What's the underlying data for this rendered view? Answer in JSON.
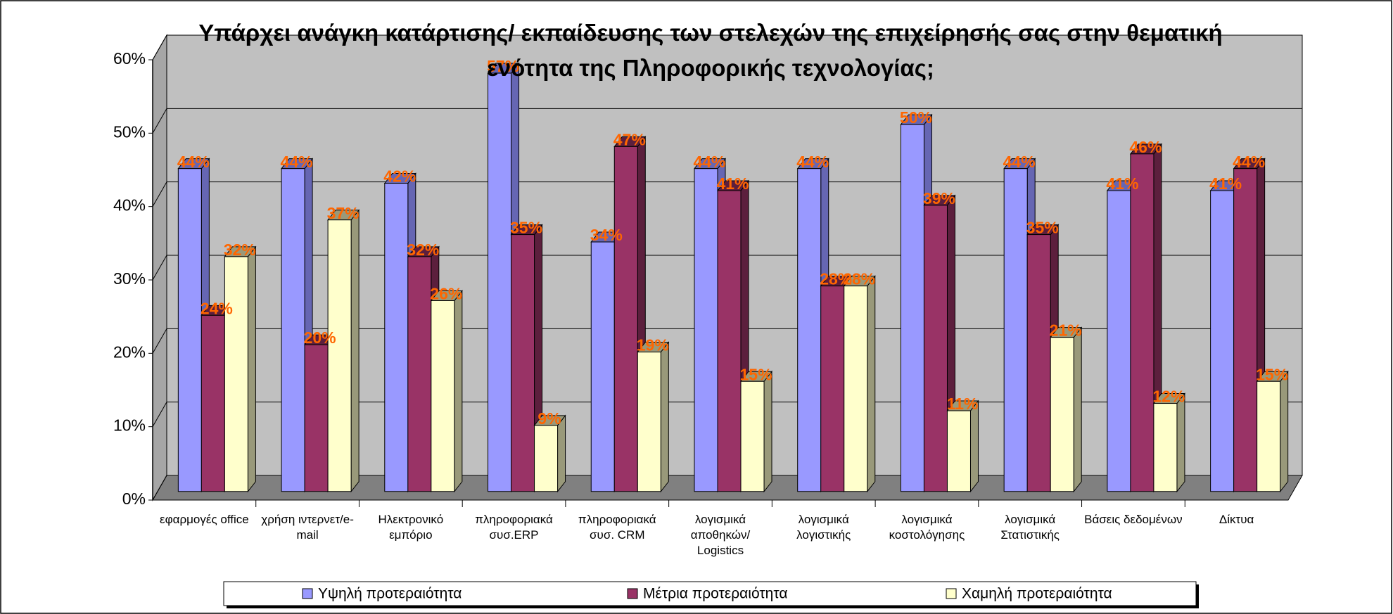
{
  "chart_data": {
    "type": "bar3d",
    "title": "Υπάρχει ανάγκη κατάρτισης/ εκπαίδευσης των στελεχών της επιχείρησής σας στην θεματική ενότητα της Πληροφορικής τεχνολογίας;",
    "categories": [
      "εφαρμογές office",
      "χρήση ιντερνετ/e-mail",
      "Ηλεκτρονικό εμπόριο",
      "πληροφοριακά συσ.ERP",
      "πληροφοριακά συσ. CRM",
      "λογισμικά αποθηκών/ Logistics",
      "λογισμικά λογιστικής",
      "λογισμικά κοστολόγησης",
      "λογισμικά Στατιστικής",
      "Βάσεις δεδομένων",
      "Δίκτυα"
    ],
    "series": [
      {
        "name": "Υψηλή προτεραιότητα",
        "color": "#9999ff",
        "side": "#6666b3",
        "values": [
          44,
          44,
          42,
          57,
          34,
          44,
          44,
          50,
          44,
          41,
          41
        ],
        "value_labels": [
          "44%",
          "44%",
          "42%",
          "57%",
          "34%",
          "44%",
          "44%",
          "50%",
          "44%",
          "41%",
          "41%"
        ]
      },
      {
        "name": "Μέτρια προτεραιότητα",
        "color": "#993366",
        "side": "#5c1f3d",
        "values": [
          24,
          20,
          32,
          35,
          47,
          41,
          28,
          39,
          35,
          46,
          44
        ],
        "value_labels": [
          "24%",
          "20%",
          "32%",
          "35%",
          "47%",
          "41%",
          "28%",
          "39%",
          "35%",
          "46%",
          "44%"
        ]
      },
      {
        "name": "Χαμηλή προτεραιότητα",
        "color": "#ffffcc",
        "side": "#99997a",
        "values": [
          32,
          37,
          26,
          9,
          19,
          15,
          28,
          11,
          21,
          12,
          15
        ],
        "value_labels": [
          "32%",
          "37%",
          "26%",
          "9%",
          "19%",
          "15%",
          "28%",
          "11%",
          "21%",
          "12%",
          "15%"
        ]
      }
    ],
    "ylim": [
      0,
      60
    ],
    "yticks": [
      {
        "value": 0,
        "label": "0%"
      },
      {
        "value": 10,
        "label": "10%"
      },
      {
        "value": 20,
        "label": "20%"
      },
      {
        "value": 30,
        "label": "30%"
      },
      {
        "value": 40,
        "label": "40%"
      },
      {
        "value": 50,
        "label": "50%"
      },
      {
        "value": 60,
        "label": "60%"
      }
    ],
    "grid": true,
    "label_color": "#ff6600"
  }
}
